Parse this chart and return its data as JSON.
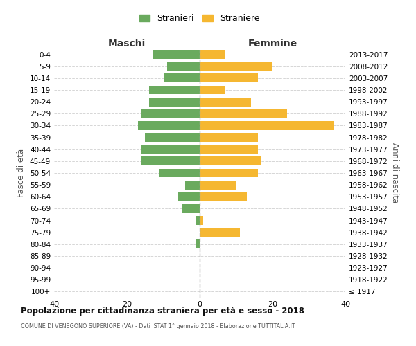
{
  "age_groups": [
    "0-4",
    "5-9",
    "10-14",
    "15-19",
    "20-24",
    "25-29",
    "30-34",
    "35-39",
    "40-44",
    "45-49",
    "50-54",
    "55-59",
    "60-64",
    "65-69",
    "70-74",
    "75-79",
    "80-84",
    "85-89",
    "90-94",
    "95-99",
    "100+"
  ],
  "birth_years": [
    "2013-2017",
    "2008-2012",
    "2003-2007",
    "1998-2002",
    "1993-1997",
    "1988-1992",
    "1983-1987",
    "1978-1982",
    "1973-1977",
    "1968-1972",
    "1963-1967",
    "1958-1962",
    "1953-1957",
    "1948-1952",
    "1943-1947",
    "1938-1942",
    "1933-1937",
    "1928-1932",
    "1923-1927",
    "1918-1922",
    "≤ 1917"
  ],
  "maschi": [
    13,
    9,
    10,
    14,
    14,
    16,
    17,
    15,
    16,
    16,
    11,
    4,
    6,
    5,
    1,
    0,
    1,
    0,
    0,
    0,
    0
  ],
  "femmine": [
    7,
    20,
    16,
    7,
    14,
    24,
    37,
    16,
    16,
    17,
    16,
    10,
    13,
    0,
    1,
    11,
    0,
    0,
    0,
    0,
    0
  ],
  "color_maschi": "#6aaa5e",
  "color_femmine": "#f5b731",
  "title": "Popolazione per cittadinanza straniera per età e sesso - 2018",
  "subtitle": "COMUNE DI VENEGONO SUPERIORE (VA) - Dati ISTAT 1° gennaio 2018 - Elaborazione TUTTITALIA.IT",
  "xlabel_left": "Maschi",
  "xlabel_right": "Femmine",
  "ylabel_left": "Fasce di età",
  "ylabel_right": "Anni di nascita",
  "xlim": 40,
  "legend_stranieri": "Stranieri",
  "legend_straniere": "Straniere",
  "background_color": "#ffffff",
  "grid_color": "#cccccc",
  "dashed_line_color": "#aaaaaa"
}
